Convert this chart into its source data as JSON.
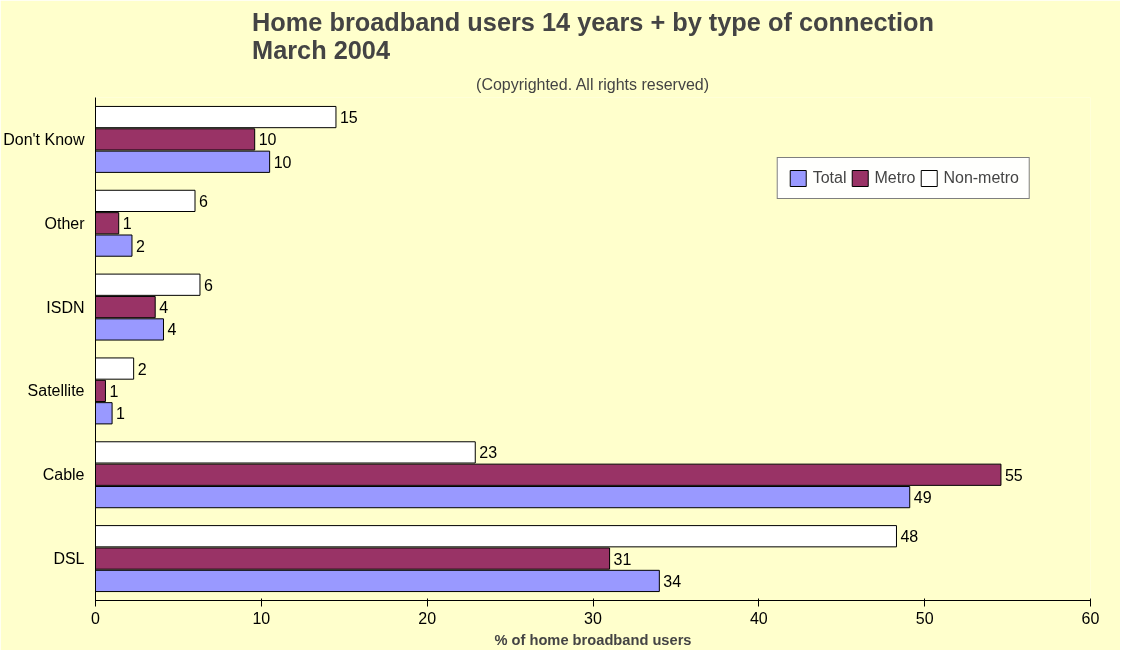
{
  "chart_data": {
    "type": "bar",
    "orientation": "horizontal",
    "title": "Home broadband users 14 years + by type of connection\nMarch 2004",
    "subtitle": "(Copyrighted. All rights reserved)",
    "xlabel": "% of home broadband users",
    "categories": [
      "Don't Know",
      "Other",
      "ISDN",
      "Satellite",
      "Cable",
      "DSL"
    ],
    "series": [
      {
        "name": "Total",
        "color": "#9999ff",
        "values": [
          10.5,
          2.2,
          4.1,
          1.0,
          49.1,
          34.0
        ],
        "value_labels": [
          "10",
          "2",
          "4",
          "1",
          "49",
          "34"
        ]
      },
      {
        "name": "Metro",
        "color": "#993366",
        "values": [
          9.6,
          1.4,
          3.6,
          0.6,
          54.6,
          31.0
        ],
        "value_labels": [
          "10",
          "1",
          "4",
          "1",
          "55",
          "31"
        ]
      },
      {
        "name": "Non-metro",
        "color": "#ffffff",
        "values": [
          14.5,
          6.0,
          6.3,
          2.3,
          22.9,
          48.3
        ],
        "value_labels": [
          "15",
          "6",
          "6",
          "2",
          "23",
          "48"
        ]
      }
    ],
    "xlim": [
      0,
      60
    ],
    "xticks": [
      0,
      10,
      20,
      30,
      40,
      50,
      60
    ],
    "grid": false,
    "legend": "top right"
  }
}
